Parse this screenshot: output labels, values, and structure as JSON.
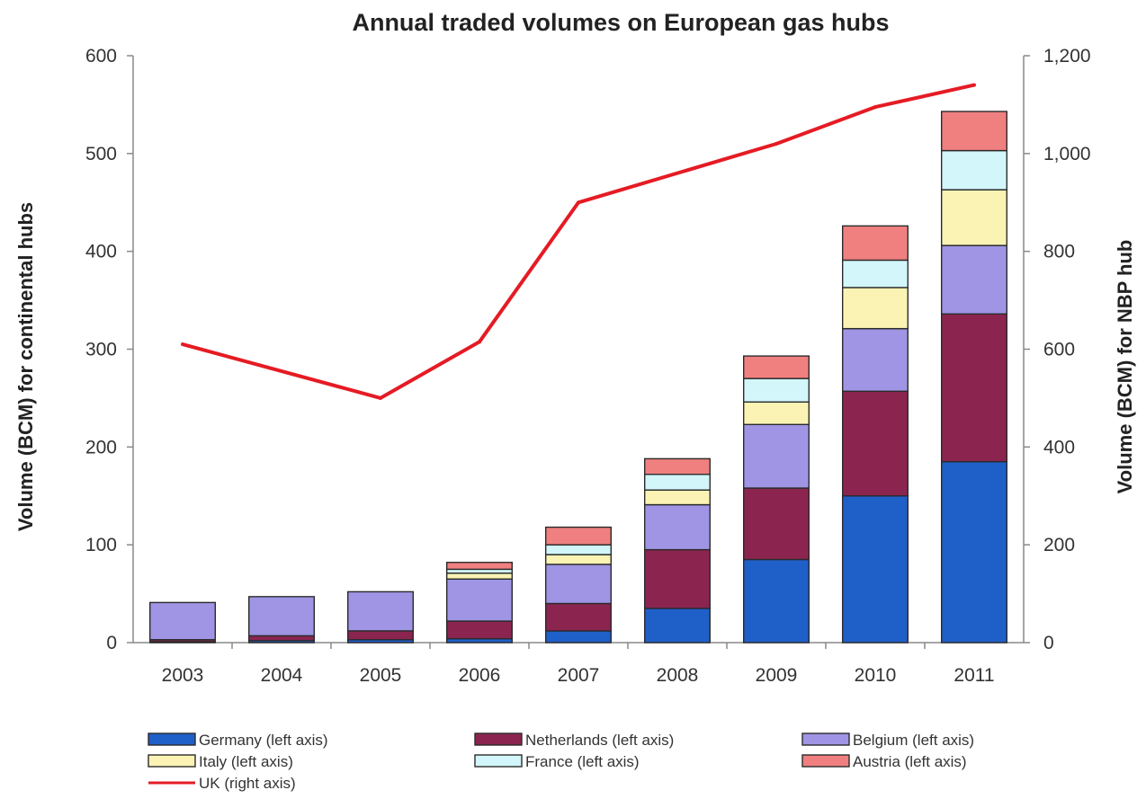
{
  "chart_data": {
    "type": "bar",
    "stacked": true,
    "title": "Annual traded volumes on European gas hubs",
    "ylabel": "Volume (BCM) for continental hubs",
    "y2label": "Volume (BCM) for NBP hub",
    "ylim": [
      0,
      600
    ],
    "y2lim": [
      0,
      1200
    ],
    "yticks": [
      "0",
      "100",
      "200",
      "300",
      "400",
      "500",
      "600"
    ],
    "y2ticks": [
      "0",
      "200",
      "400",
      "600",
      "800",
      "1,000",
      "1,200"
    ],
    "categories": [
      "2003",
      "2004",
      "2005",
      "2006",
      "2007",
      "2008",
      "2009",
      "2010",
      "2011"
    ],
    "grid": false,
    "legend_position": "bottom",
    "series": [
      {
        "name": "Germany (left axis)",
        "key": "germany",
        "axis": "left",
        "color": "#1f5fc8",
        "values": [
          1,
          2,
          3,
          4,
          12,
          35,
          85,
          150,
          185
        ]
      },
      {
        "name": "Netherlands (left axis)",
        "key": "netherlands",
        "axis": "left",
        "color": "#8b2550",
        "values": [
          2,
          5,
          9,
          18,
          28,
          60,
          73,
          107,
          151
        ]
      },
      {
        "name": "Belgium (left axis)",
        "key": "belgium",
        "axis": "left",
        "color": "#9f95e4",
        "values": [
          38,
          40,
          40,
          43,
          40,
          46,
          65,
          64,
          70
        ]
      },
      {
        "name": "Italy (left axis)",
        "key": "italy",
        "axis": "left",
        "color": "#fbf3b4",
        "values": [
          0,
          0,
          0,
          6,
          10,
          15,
          23,
          42,
          57
        ]
      },
      {
        "name": "France (left axis)",
        "key": "france",
        "axis": "left",
        "color": "#d2f6fa",
        "values": [
          0,
          0,
          0,
          4,
          10,
          16,
          24,
          28,
          40
        ]
      },
      {
        "name": "Austria (left axis)",
        "key": "austria",
        "axis": "left",
        "color": "#f08080",
        "values": [
          0,
          0,
          0,
          7,
          18,
          16,
          23,
          35,
          40
        ]
      },
      {
        "name": "UK (right axis)",
        "key": "uk",
        "axis": "right",
        "type": "line",
        "color": "#e51b24",
        "values": [
          610,
          null,
          500,
          615,
          900,
          null,
          1020,
          1095,
          1140
        ]
      }
    ]
  }
}
